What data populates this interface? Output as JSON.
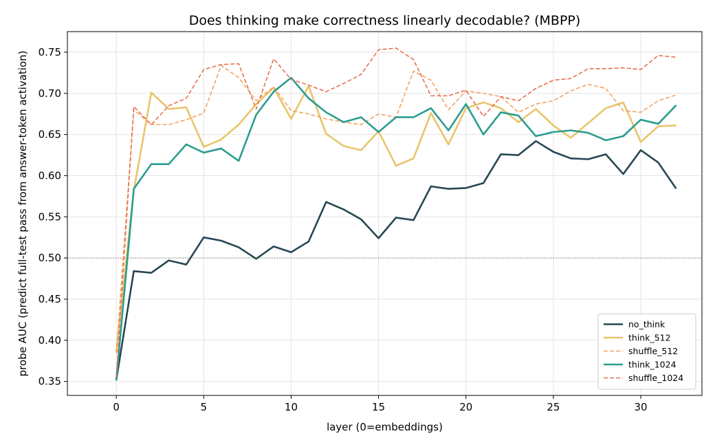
{
  "chart_data": {
    "type": "line",
    "title": "Does thinking make correctness linearly decodable? (MBPP)",
    "xlabel": "layer (0=embeddings)",
    "ylabel": "probe AUC (predict full-test pass from answer-token activation)",
    "xlim": [
      -2.8,
      33.5
    ],
    "ylim": [
      0.333,
      0.775
    ],
    "xticks": [
      0,
      5,
      10,
      15,
      20,
      25,
      30
    ],
    "yticks": [
      0.35,
      0.4,
      0.45,
      0.5,
      0.55,
      0.6,
      0.65,
      0.7,
      0.75
    ],
    "ytick_labels": [
      "0.35",
      "0.40",
      "0.45",
      "0.50",
      "0.55",
      "0.60",
      "0.65",
      "0.70",
      "0.75"
    ],
    "grid": true,
    "legend_position": "lower-right",
    "reference_line": {
      "y": 0.5,
      "style": "dotted",
      "color": "#808080"
    },
    "x": [
      0,
      1,
      2,
      3,
      4,
      5,
      6,
      7,
      8,
      9,
      10,
      11,
      12,
      13,
      14,
      15,
      16,
      17,
      18,
      19,
      20,
      21,
      22,
      23,
      24,
      25,
      26,
      27,
      28,
      29,
      30,
      31,
      32
    ],
    "series": [
      {
        "name": "no_think",
        "color": "#264653",
        "dashed": false,
        "values": [
          0.352,
          0.484,
          0.482,
          0.497,
          0.492,
          0.525,
          0.521,
          0.513,
          0.499,
          0.514,
          0.507,
          0.52,
          0.568,
          0.559,
          0.547,
          0.524,
          0.549,
          0.546,
          0.587,
          0.584,
          0.585,
          0.591,
          0.626,
          0.625,
          0.642,
          0.629,
          0.621,
          0.62,
          0.626,
          0.602,
          0.631,
          0.616,
          0.585
        ]
      },
      {
        "name": "think_512",
        "color": "#e9c46a",
        "dashed": false,
        "values": [
          0.386,
          0.582,
          0.701,
          0.681,
          0.683,
          0.635,
          0.644,
          0.662,
          0.687,
          0.707,
          0.669,
          0.709,
          0.651,
          0.636,
          0.631,
          0.654,
          0.612,
          0.621,
          0.676,
          0.638,
          0.682,
          0.689,
          0.682,
          0.665,
          0.681,
          0.661,
          0.646,
          0.664,
          0.682,
          0.689,
          0.641,
          0.66,
          0.661
        ]
      },
      {
        "name": "shuffle_512",
        "color": "#f4a261",
        "dashed": true,
        "values": [
          0.384,
          0.68,
          0.662,
          0.662,
          0.668,
          0.676,
          0.734,
          0.719,
          0.691,
          0.708,
          0.679,
          0.675,
          0.669,
          0.665,
          0.662,
          0.675,
          0.671,
          0.727,
          0.716,
          0.68,
          0.703,
          0.7,
          0.696,
          0.677,
          0.687,
          0.691,
          0.703,
          0.711,
          0.706,
          0.679,
          0.677,
          0.691,
          0.698
        ]
      },
      {
        "name": "think_1024",
        "color": "#2a9d8f",
        "dashed": false,
        "values": [
          0.352,
          0.584,
          0.614,
          0.614,
          0.638,
          0.628,
          0.633,
          0.618,
          0.674,
          0.702,
          0.719,
          0.694,
          0.677,
          0.665,
          0.671,
          0.653,
          0.671,
          0.671,
          0.682,
          0.655,
          0.687,
          0.65,
          0.677,
          0.673,
          0.648,
          0.653,
          0.655,
          0.652,
          0.643,
          0.648,
          0.668,
          0.663,
          0.685
        ]
      },
      {
        "name": "shuffle_1024",
        "color": "#e76f51",
        "dashed": true,
        "values": [
          0.355,
          0.684,
          0.662,
          0.685,
          0.694,
          0.729,
          0.735,
          0.736,
          0.681,
          0.742,
          0.717,
          0.71,
          0.702,
          0.712,
          0.723,
          0.753,
          0.755,
          0.741,
          0.697,
          0.697,
          0.704,
          0.672,
          0.696,
          0.691,
          0.706,
          0.716,
          0.718,
          0.73,
          0.73,
          0.731,
          0.729,
          0.746,
          0.744
        ]
      }
    ]
  }
}
